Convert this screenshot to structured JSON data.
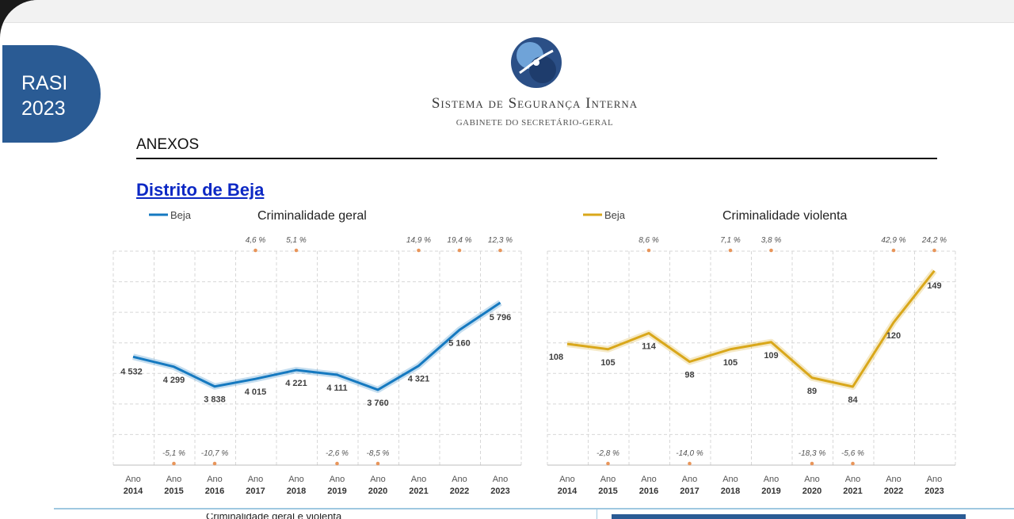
{
  "header": {
    "badge_line1": "RASI",
    "badge_line2": "2023",
    "org_name": "Sistema de Segurança Interna",
    "org_subtitle": "GABINETE DO SECRETÁRIO-GERAL"
  },
  "section": {
    "title": "ANEXOS",
    "district": "Distrito de Beja"
  },
  "footer": {
    "partial_text": "Criminalidade geral e violenta"
  },
  "colors": {
    "badge": "#2a5b94",
    "series_geral": "#1579c0",
    "series_violenta": "#d9a71a",
    "variation_marker": "#e8955a",
    "district_link": "#0c28c4"
  },
  "chart_data": [
    {
      "type": "line",
      "title": "Criminalidade geral",
      "series": [
        {
          "name": "Beja",
          "values": [
            4532,
            4299,
            3838,
            4015,
            4221,
            4111,
            3760,
            4321,
            5160,
            5796
          ],
          "value_labels": [
            "4 532",
            "4 299",
            "3 838",
            "4 015",
            "4 221",
            "4 111",
            "3 760",
            "4 321",
            "5 160",
            "5 796"
          ]
        }
      ],
      "categories": [
        [
          "Ano",
          "2014"
        ],
        [
          "Ano",
          "2015"
        ],
        [
          "Ano",
          "2016"
        ],
        [
          "Ano",
          "2017"
        ],
        [
          "Ano",
          "2018"
        ],
        [
          "Ano",
          "2019"
        ],
        [
          "Ano",
          "2020"
        ],
        [
          "Ano",
          "2021"
        ],
        [
          "Ano",
          "2022"
        ],
        [
          "Ano",
          "2023"
        ]
      ],
      "variations": [
        null,
        "-5,1 %",
        "-10,7 %",
        "4,6 %",
        "5,1 %",
        "-2,6 %",
        "-8,5 %",
        "14,9 %",
        "19,4 %",
        "12,3 %"
      ],
      "variation_values": [
        null,
        -5.1,
        -10.7,
        4.6,
        5.1,
        -2.6,
        -8.5,
        14.9,
        19.4,
        12.3
      ],
      "ylim": [
        2000,
        7000
      ],
      "grid": true,
      "legend": "top-left"
    },
    {
      "type": "line",
      "title": "Criminalidade violenta",
      "series": [
        {
          "name": "Beja",
          "values": [
            108,
            105,
            114,
            98,
            105,
            109,
            89,
            84,
            120,
            149
          ],
          "value_labels": [
            "108",
            "105",
            "114",
            "98",
            "105",
            "109",
            "89",
            "84",
            "120",
            "149"
          ]
        }
      ],
      "categories": [
        [
          "Ano",
          "2014"
        ],
        [
          "Ano",
          "2015"
        ],
        [
          "Ano",
          "2016"
        ],
        [
          "Ano",
          "2017"
        ],
        [
          "Ano",
          "2018"
        ],
        [
          "Ano",
          "2019"
        ],
        [
          "Ano",
          "2020"
        ],
        [
          "Ano",
          "2021"
        ],
        [
          "Ano",
          "2022"
        ],
        [
          "Ano",
          "2023"
        ]
      ],
      "variations": [
        null,
        "-2,8 %",
        "8,6 %",
        "-14,0 %",
        "7,1 %",
        "3,8 %",
        "-18,3 %",
        "-5,6 %",
        "42,9 %",
        "24,2 %"
      ],
      "variation_values": [
        null,
        -2.8,
        8.6,
        -14.0,
        7.1,
        3.8,
        -18.3,
        -5.6,
        42.9,
        24.2
      ],
      "ylim": [
        40,
        160
      ],
      "grid": true,
      "legend": "top-left"
    }
  ]
}
